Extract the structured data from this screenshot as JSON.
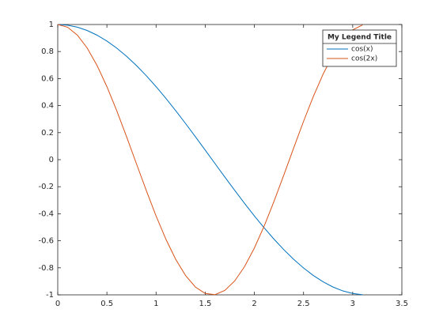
{
  "chart_data": {
    "type": "line",
    "x": [
      0,
      0.1,
      0.2,
      0.3,
      0.4,
      0.5,
      0.6,
      0.7,
      0.8,
      0.9,
      1,
      1.1,
      1.2,
      1.3,
      1.4,
      1.5,
      1.6,
      1.7,
      1.8,
      1.9,
      2,
      2.1,
      2.2,
      2.3,
      2.4,
      2.5,
      2.6,
      2.7,
      2.8,
      2.9,
      3,
      3.1
    ],
    "series": [
      {
        "name": "cos(x)",
        "color": "#0072bd",
        "values": [
          1,
          0.995,
          0.9801,
          0.9553,
          0.9211,
          0.8776,
          0.8253,
          0.7648,
          0.6967,
          0.6216,
          0.5403,
          0.4536,
          0.3624,
          0.2675,
          0.17,
          0.0707,
          -0.0292,
          -0.1288,
          -0.2272,
          -0.3233,
          -0.4161,
          -0.5048,
          -0.5885,
          -0.6663,
          -0.7374,
          -0.8011,
          -0.8569,
          -0.9041,
          -0.9422,
          -0.971,
          -0.99,
          -0.9991
        ]
      },
      {
        "name": "cos(2x)",
        "color": "#d95319",
        "values": [
          1,
          0.9801,
          0.9211,
          0.8253,
          0.6967,
          0.5403,
          0.3624,
          0.17,
          -0.0292,
          -0.2272,
          -0.4161,
          -0.5885,
          -0.7374,
          -0.8569,
          -0.9422,
          -0.99,
          -0.9983,
          -0.9668,
          -0.8968,
          -0.791,
          -0.6536,
          -0.4903,
          -0.3073,
          -0.1122,
          0.0875,
          0.2837,
          0.4685,
          0.6347,
          0.7756,
          0.8855,
          0.9602,
          0.9965
        ]
      }
    ],
    "legend_title": "My Legend Title",
    "legend_position": "northeast",
    "xlim": [
      0,
      3.5
    ],
    "xticks": [
      0,
      0.5,
      1,
      1.5,
      2,
      2.5,
      3,
      3.5
    ],
    "ylim": [
      -1,
      1
    ],
    "yticks": [
      -1,
      -0.8,
      -0.6,
      -0.4,
      -0.2,
      0,
      0.2,
      0.4,
      0.6,
      0.8,
      1
    ]
  }
}
